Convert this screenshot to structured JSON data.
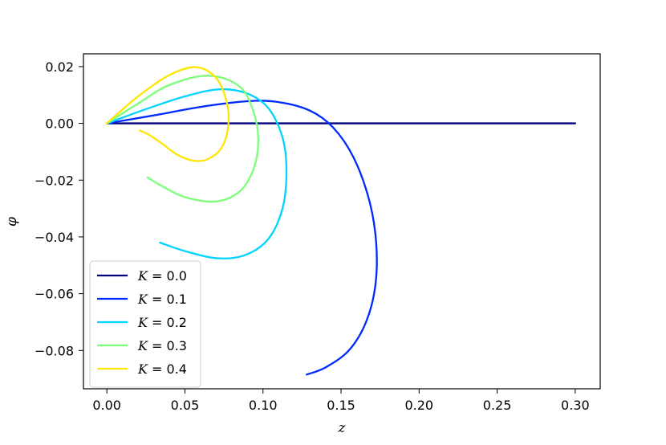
{
  "chart_data": {
    "type": "line",
    "xlabel": "z",
    "ylabel": "φ",
    "xlim": [
      -0.015,
      0.316
    ],
    "ylim": [
      -0.0935,
      0.0245
    ],
    "xticks": [
      0.0,
      0.05,
      0.1,
      0.15,
      0.2,
      0.25,
      0.3
    ],
    "xtick_labels": [
      "0.00",
      "0.05",
      "0.10",
      "0.15",
      "0.20",
      "0.25",
      "0.30"
    ],
    "yticks": [
      0.02,
      0.0,
      -0.02,
      -0.04,
      -0.06,
      -0.08
    ],
    "ytick_labels": [
      "0.02",
      "0.00",
      "−0.02",
      "−0.04",
      "−0.06",
      "−0.08"
    ],
    "grid": false,
    "legend_position": "lower-left",
    "series": [
      {
        "name": "K = 0.0",
        "label_var": "K",
        "label_rest": " = 0.0",
        "color": "#00007f",
        "x": [
          0.0,
          0.3
        ],
        "y": [
          0.0,
          0.0
        ]
      },
      {
        "name": "K = 0.1",
        "label_var": "K",
        "label_rest": " = 0.1",
        "color": "#0029ff",
        "x": [
          0.0,
          0.03,
          0.06,
          0.09,
          0.11,
          0.13,
          0.145,
          0.158,
          0.168,
          0.1725,
          0.172,
          0.166,
          0.155,
          0.14,
          0.128
        ],
        "y": [
          0.0,
          0.0028,
          0.0058,
          0.0078,
          0.0075,
          0.0045,
          -0.0015,
          -0.012,
          -0.027,
          -0.042,
          -0.057,
          -0.07,
          -0.08,
          -0.086,
          -0.0885
        ]
      },
      {
        "name": "K = 0.2",
        "label_var": "K",
        "label_rest": " = 0.2",
        "color": "#00d4ff",
        "x": [
          0.0,
          0.025,
          0.05,
          0.072,
          0.09,
          0.104,
          0.113,
          0.115,
          0.112,
          0.103,
          0.088,
          0.07,
          0.05,
          0.034
        ],
        "y": [
          0.0,
          0.005,
          0.0095,
          0.012,
          0.0105,
          0.005,
          -0.006,
          -0.019,
          -0.031,
          -0.041,
          -0.0465,
          -0.0475,
          -0.045,
          -0.042
        ]
      },
      {
        "name": "K = 0.3",
        "label_var": "K",
        "label_rest": " = 0.3",
        "color": "#7dff7a",
        "x": [
          0.0,
          0.02,
          0.04,
          0.065,
          0.085,
          0.094,
          0.097,
          0.094,
          0.085,
          0.07,
          0.05,
          0.035,
          0.026
        ],
        "y": [
          0.0,
          0.007,
          0.0135,
          0.0168,
          0.013,
          0.004,
          -0.006,
          -0.016,
          -0.024,
          -0.0275,
          -0.026,
          -0.022,
          -0.019
        ]
      },
      {
        "name": "K = 0.4",
        "label_var": "K",
        "label_rest": " = 0.4",
        "color": "#ffe600",
        "x": [
          0.0,
          0.02,
          0.04,
          0.057,
          0.07,
          0.077,
          0.0775,
          0.073,
          0.065,
          0.056,
          0.045,
          0.035,
          0.027,
          0.021
        ],
        "y": [
          0.0,
          0.0095,
          0.017,
          0.0198,
          0.016,
          0.007,
          -0.002,
          -0.009,
          -0.0125,
          -0.0132,
          -0.011,
          -0.007,
          -0.004,
          -0.0025
        ]
      }
    ]
  }
}
